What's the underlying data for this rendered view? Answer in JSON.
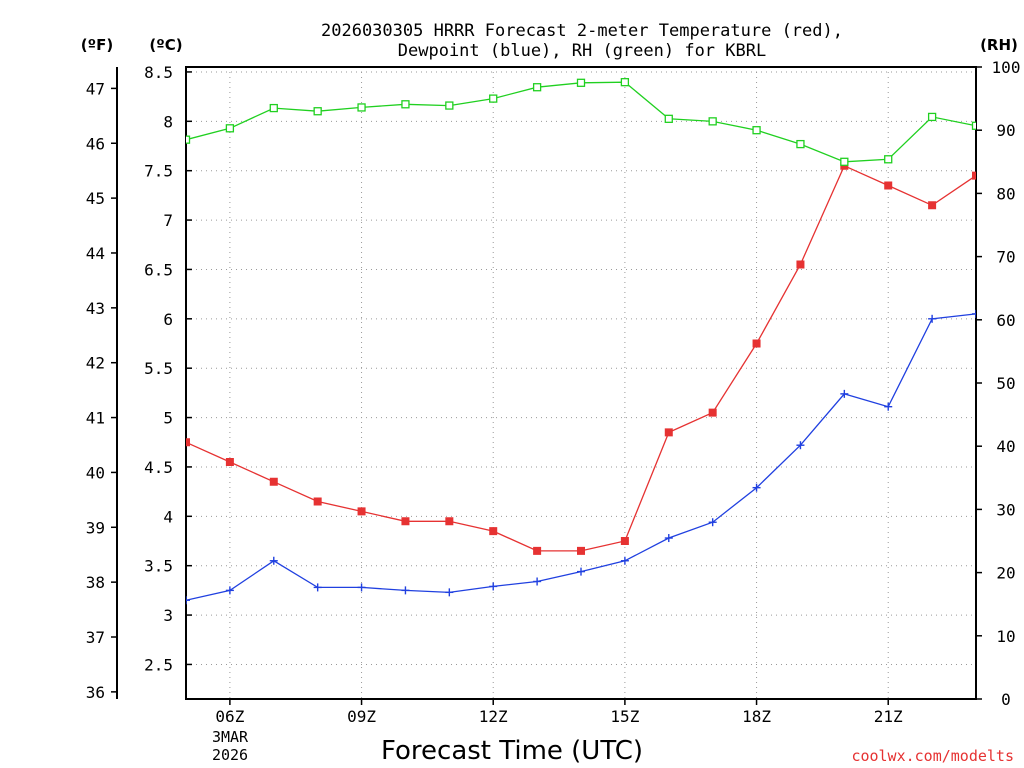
{
  "chart_data": {
    "type": "line",
    "title_line1": "2026030305 HRRR Forecast 2-meter Temperature (red),",
    "title_line2": "Dewpoint (blue), RH (green) for KBRL",
    "xlabel": "Forecast Time (UTC)",
    "credit": "coolwx.com/modelts",
    "unit_f": "(ºF)",
    "unit_c": "(ºC)",
    "unit_rh": "(RH)",
    "x_hours": [
      5,
      6,
      7,
      8,
      9,
      10,
      11,
      12,
      13,
      14,
      15,
      16,
      17,
      18,
      19,
      20,
      21,
      22,
      23
    ],
    "x_range": [
      5,
      23
    ],
    "x_ticks": [
      {
        "hour": 6,
        "label": "06Z"
      },
      {
        "hour": 9,
        "label": "09Z"
      },
      {
        "hour": 12,
        "label": "12Z"
      },
      {
        "hour": 15,
        "label": "15Z"
      },
      {
        "hour": 18,
        "label": "18Z"
      },
      {
        "hour": 21,
        "label": "21Z"
      }
    ],
    "date_line1": "3MAR",
    "date_line2": "2026",
    "c_range": [
      2.15,
      8.55
    ],
    "c_ticks": [
      "2.5",
      "3",
      "3.5",
      "4",
      "4.5",
      "5",
      "5.5",
      "6",
      "6.5",
      "7",
      "7.5",
      "8",
      "8.5"
    ],
    "f_ticks": [
      "36",
      "37",
      "38",
      "39",
      "40",
      "41",
      "42",
      "43",
      "44",
      "45",
      "46",
      "47"
    ],
    "rh_range": [
      0,
      100
    ],
    "rh_ticks": [
      "0",
      "10",
      "20",
      "30",
      "40",
      "50",
      "60",
      "70",
      "80",
      "90",
      "100"
    ],
    "series": [
      {
        "name": "Temperature",
        "units": "C",
        "color": "#e63232",
        "values": [
          4.75,
          4.55,
          4.35,
          4.15,
          4.05,
          3.95,
          3.95,
          3.85,
          3.65,
          3.65,
          3.75,
          4.85,
          5.05,
          5.75,
          6.55,
          7.55,
          7.35,
          7.15,
          7.45
        ]
      },
      {
        "name": "Dewpoint",
        "units": "C",
        "color": "#2040e0",
        "values": [
          3.15,
          3.25,
          3.55,
          3.28,
          3.28,
          3.25,
          3.23,
          3.29,
          3.34,
          3.44,
          3.55,
          3.78,
          3.94,
          4.29,
          4.72,
          5.24,
          5.11,
          6.0,
          6.05
        ]
      },
      {
        "name": "RH",
        "units": "%",
        "color": "#20d020",
        "values": [
          88.5,
          90.3,
          93.5,
          93.0,
          93.6,
          94.1,
          93.9,
          95.0,
          96.8,
          97.5,
          97.6,
          91.8,
          91.4,
          90.0,
          87.8,
          85.0,
          85.4,
          92.1,
          90.7
        ]
      }
    ]
  }
}
